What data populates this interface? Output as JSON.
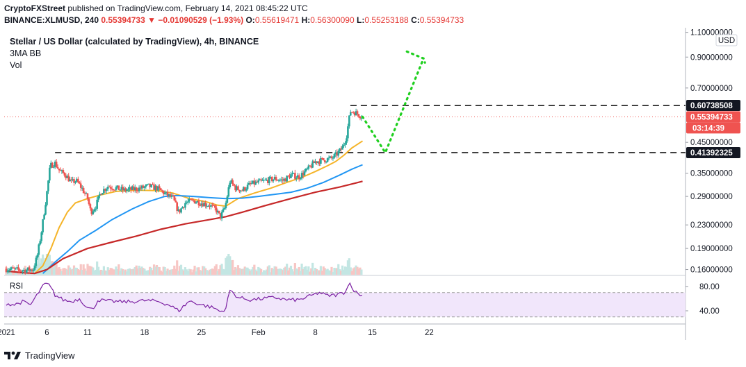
{
  "header": {
    "publisher": "CryptoFXStreet",
    "published_text": "published on TradingView.com, February 14, 2021 08:45:22 UTC",
    "symbol": "BINANCE:XLMUSD, 240",
    "last": "0.55394733",
    "change_arrow": "▼",
    "change": "−0.01090529 (−1.93%)",
    "open_label": "O:",
    "open": "0.55619471",
    "high_label": "H:",
    "high": "0.56300090",
    "low_label": "L:",
    "low": "0.55253188",
    "close_label": "C:",
    "close": "0.55394733"
  },
  "overlay": {
    "title": "Stellar / US Dollar (calculated by TradingView), 4h, BINANCE",
    "indicator": "3MA BB",
    "volume_label": "Vol"
  },
  "rsi_label": "RSI",
  "footer": {
    "brand": "TradingView",
    "logo_icon": "tradingview-logo-icon"
  },
  "colors": {
    "up": "#26a69a",
    "down": "#ef5350",
    "ma_short": "#f5b429",
    "ma_mid": "#2196f3",
    "ma_long": "#c62828",
    "rsi": "#7b1fa2",
    "rsi_band": "#f1e6fb",
    "arrow": "#1fcf1f",
    "price_badge": "#ef5350",
    "level_badge": "#131722"
  },
  "chart_data": {
    "type": "candlestick",
    "price_axis": {
      "unit": "USD",
      "scale": "log",
      "ticks": [
        {
          "value": 1.1,
          "label": "1.10000000"
        },
        {
          "value": 0.9,
          "label": "0.90000000"
        },
        {
          "value": 0.7,
          "label": "0.70000000"
        },
        {
          "value": 0.45,
          "label": "0.45000000"
        },
        {
          "value": 0.35,
          "label": "0.35000000"
        },
        {
          "value": 0.29,
          "label": "0.29000000"
        },
        {
          "value": 0.23,
          "label": "0.23000000"
        },
        {
          "value": 0.19,
          "label": "0.19000000"
        },
        {
          "value": 0.16,
          "label": "0.16000000"
        }
      ],
      "badges": [
        {
          "value": 0.60738508,
          "label": "0.60738508",
          "kind": "level"
        },
        {
          "value": 0.55394733,
          "label": "0.55394733",
          "kind": "price"
        },
        {
          "value": 0.49,
          "label": "03:14:39",
          "kind": "countdown"
        },
        {
          "value": 0.41392325,
          "label": "0.41392325",
          "kind": "level"
        }
      ]
    },
    "time_axis": {
      "ticks": [
        {
          "day": 1,
          "label": "2021"
        },
        {
          "day": 6,
          "label": "6"
        },
        {
          "day": 11,
          "label": "11"
        },
        {
          "day": 18,
          "label": "18"
        },
        {
          "day": 25,
          "label": "25"
        },
        {
          "day": 32,
          "label": "Feb"
        },
        {
          "day": 39,
          "label": "8"
        },
        {
          "day": 46,
          "label": "15"
        },
        {
          "day": 53,
          "label": "22"
        }
      ]
    },
    "levels": [
      {
        "name": "resistance",
        "value": 0.60738508,
        "from_day": 43.3
      },
      {
        "name": "support",
        "value": 0.41392325,
        "from_day": 7.0
      }
    ],
    "price_path": [
      [
        1.0,
        0.161
      ],
      [
        3.0,
        0.159
      ],
      [
        4.3,
        0.16
      ],
      [
        4.8,
        0.178
      ],
      [
        5.3,
        0.215
      ],
      [
        5.9,
        0.285
      ],
      [
        6.4,
        0.372
      ],
      [
        7.0,
        0.38
      ],
      [
        7.6,
        0.355
      ],
      [
        8.2,
        0.348
      ],
      [
        9.0,
        0.325
      ],
      [
        9.6,
        0.33
      ],
      [
        10.3,
        0.31
      ],
      [
        11.0,
        0.285
      ],
      [
        11.4,
        0.255
      ],
      [
        12.0,
        0.268
      ],
      [
        12.6,
        0.3
      ],
      [
        13.5,
        0.315
      ],
      [
        14.5,
        0.31
      ],
      [
        15.5,
        0.305
      ],
      [
        16.5,
        0.307
      ],
      [
        17.5,
        0.31
      ],
      [
        18.5,
        0.315
      ],
      [
        19.5,
        0.31
      ],
      [
        20.5,
        0.297
      ],
      [
        21.5,
        0.285
      ],
      [
        22.2,
        0.255
      ],
      [
        23.0,
        0.275
      ],
      [
        24.0,
        0.28
      ],
      [
        25.0,
        0.275
      ],
      [
        26.0,
        0.27
      ],
      [
        26.8,
        0.26
      ],
      [
        27.3,
        0.245
      ],
      [
        27.9,
        0.265
      ],
      [
        28.5,
        0.328
      ],
      [
        29.2,
        0.31
      ],
      [
        30.0,
        0.305
      ],
      [
        31.0,
        0.32
      ],
      [
        32.0,
        0.325
      ],
      [
        33.0,
        0.33
      ],
      [
        34.0,
        0.335
      ],
      [
        35.0,
        0.33
      ],
      [
        36.0,
        0.345
      ],
      [
        37.0,
        0.34
      ],
      [
        38.0,
        0.36
      ],
      [
        39.0,
        0.385
      ],
      [
        40.0,
        0.39
      ],
      [
        41.0,
        0.395
      ],
      [
        41.7,
        0.41
      ],
      [
        42.3,
        0.43
      ],
      [
        42.8,
        0.47
      ],
      [
        43.3,
        0.58
      ],
      [
        43.8,
        0.575
      ],
      [
        44.3,
        0.565
      ],
      [
        44.8,
        0.554
      ]
    ],
    "series": [
      {
        "name": "",
        "role": "ma_short",
        "values": [
          [
            4.5,
            0.155
          ],
          [
            5.5,
            0.165
          ],
          [
            6.5,
            0.19
          ],
          [
            7.5,
            0.225
          ],
          [
            8.5,
            0.255
          ],
          [
            9.5,
            0.275
          ],
          [
            11.0,
            0.285
          ],
          [
            12.5,
            0.293
          ],
          [
            14.5,
            0.302
          ],
          [
            17.0,
            0.305
          ],
          [
            19.5,
            0.304
          ],
          [
            21.5,
            0.298
          ],
          [
            23.5,
            0.285
          ],
          [
            25.5,
            0.278
          ],
          [
            27.0,
            0.27
          ],
          [
            28.0,
            0.268
          ],
          [
            29.5,
            0.285
          ],
          [
            31.5,
            0.298
          ],
          [
            33.5,
            0.31
          ],
          [
            35.5,
            0.325
          ],
          [
            37.5,
            0.34
          ],
          [
            39.0,
            0.355
          ],
          [
            40.5,
            0.372
          ],
          [
            41.5,
            0.385
          ],
          [
            42.5,
            0.405
          ],
          [
            43.5,
            0.43
          ],
          [
            44.8,
            0.455
          ]
        ]
      },
      {
        "name": "",
        "role": "ma_mid",
        "values": [
          [
            5.5,
            0.155
          ],
          [
            7.0,
            0.17
          ],
          [
            8.5,
            0.185
          ],
          [
            10.0,
            0.203
          ],
          [
            12.0,
            0.22
          ],
          [
            14.0,
            0.24
          ],
          [
            16.5,
            0.262
          ],
          [
            18.5,
            0.278
          ],
          [
            20.5,
            0.29
          ],
          [
            22.0,
            0.292
          ],
          [
            24.0,
            0.29
          ],
          [
            26.0,
            0.287
          ],
          [
            28.0,
            0.285
          ],
          [
            30.0,
            0.286
          ],
          [
            32.0,
            0.29
          ],
          [
            34.0,
            0.295
          ],
          [
            36.0,
            0.3
          ],
          [
            38.0,
            0.31
          ],
          [
            40.0,
            0.325
          ],
          [
            42.0,
            0.345
          ],
          [
            43.5,
            0.362
          ],
          [
            44.8,
            0.375
          ]
        ]
      },
      {
        "name": "",
        "role": "ma_long",
        "values": [
          [
            1.0,
            0.158
          ],
          [
            3.0,
            0.156
          ],
          [
            4.5,
            0.155
          ],
          [
            6.0,
            0.16
          ],
          [
            8.0,
            0.175
          ],
          [
            11.0,
            0.19
          ],
          [
            14.0,
            0.2
          ],
          [
            17.0,
            0.21
          ],
          [
            20.0,
            0.222
          ],
          [
            23.0,
            0.232
          ],
          [
            26.0,
            0.24
          ],
          [
            28.0,
            0.246
          ],
          [
            30.0,
            0.255
          ],
          [
            33.0,
            0.27
          ],
          [
            36.0,
            0.285
          ],
          [
            39.0,
            0.3
          ],
          [
            42.0,
            0.313
          ],
          [
            44.8,
            0.328
          ]
        ]
      }
    ],
    "projection": [
      [
        44.8,
        0.554
      ],
      [
        47.6,
        0.414
      ],
      [
        52.3,
        0.89
      ]
    ],
    "rsi": {
      "label": "RSI",
      "ticks": [
        {
          "value": 80,
          "label": "80.00"
        },
        {
          "value": 40,
          "label": "40.00"
        }
      ],
      "band": [
        30,
        70
      ],
      "values": [
        [
          1.0,
          52
        ],
        [
          2.0,
          50
        ],
        [
          3.0,
          55
        ],
        [
          4.0,
          50
        ],
        [
          4.6,
          62
        ],
        [
          5.2,
          75
        ],
        [
          5.8,
          85
        ],
        [
          6.3,
          82
        ],
        [
          7.0,
          66
        ],
        [
          8.0,
          58
        ],
        [
          9.0,
          55
        ],
        [
          10.0,
          60
        ],
        [
          11.0,
          45
        ],
        [
          11.6,
          42
        ],
        [
          12.3,
          58
        ],
        [
          13.5,
          56
        ],
        [
          15.0,
          55
        ],
        [
          16.5,
          55
        ],
        [
          18.0,
          57
        ],
        [
          19.5,
          56
        ],
        [
          21.0,
          50
        ],
        [
          22.2,
          40
        ],
        [
          23.5,
          56
        ],
        [
          25.0,
          50
        ],
        [
          26.5,
          45
        ],
        [
          27.4,
          38
        ],
        [
          28.0,
          45
        ],
        [
          28.5,
          74
        ],
        [
          29.5,
          62
        ],
        [
          31.0,
          58
        ],
        [
          32.5,
          60
        ],
        [
          34.0,
          62
        ],
        [
          35.5,
          58
        ],
        [
          37.0,
          58
        ],
        [
          38.5,
          65
        ],
        [
          39.5,
          70
        ],
        [
          40.5,
          65
        ],
        [
          41.5,
          66
        ],
        [
          42.5,
          70
        ],
        [
          43.3,
          86
        ],
        [
          43.8,
          72
        ],
        [
          44.3,
          68
        ],
        [
          44.8,
          65
        ]
      ]
    },
    "title": "Stellar / US Dollar (calculated by TradingView), 4h, BINANCE"
  }
}
